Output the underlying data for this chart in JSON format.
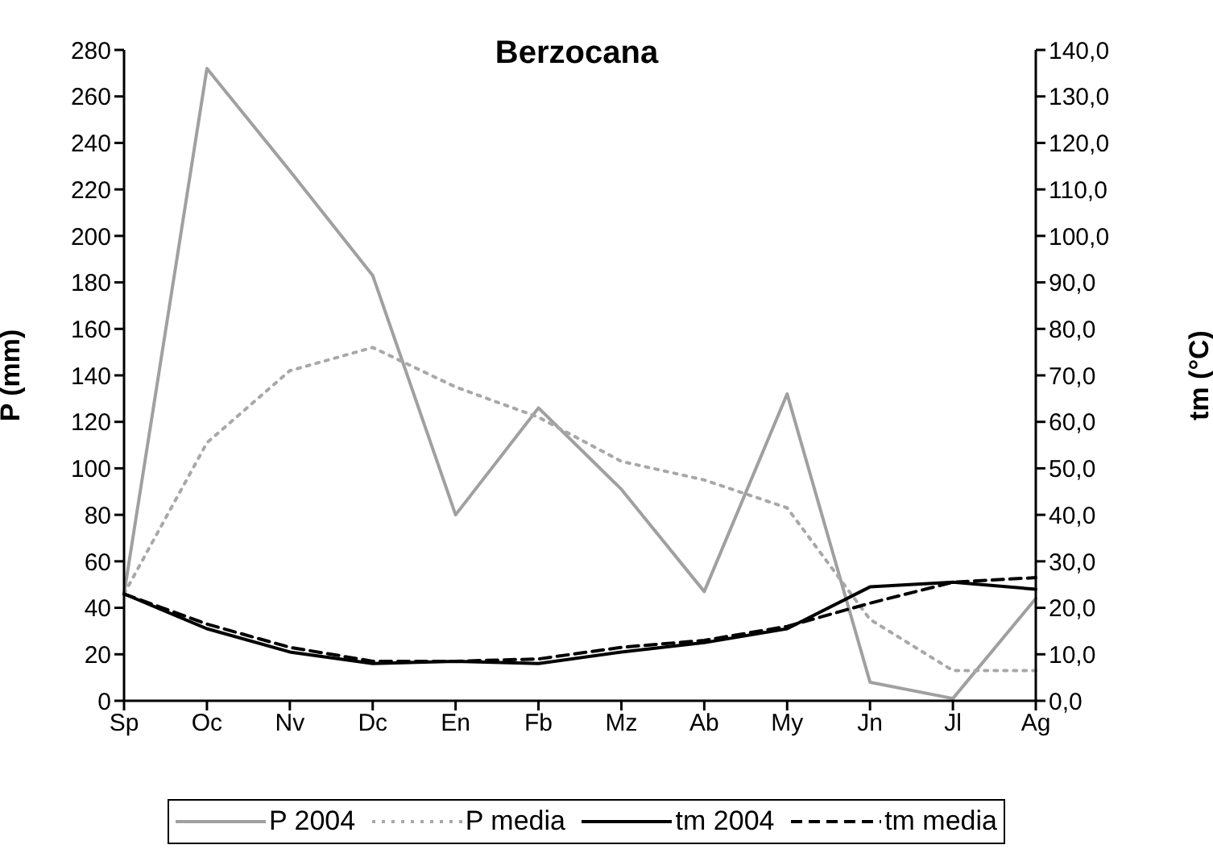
{
  "chart_data": {
    "type": "line",
    "title": "Berzocana",
    "ylabel": "P (mm)",
    "y2label": "tm (°C)",
    "categories": [
      "Sp",
      "Oc",
      "Nv",
      "Dc",
      "En",
      "Fb",
      "Mz",
      "Ab",
      "My",
      "Jn",
      "Jl",
      "Ag"
    ],
    "series": [
      {
        "name": "P 2004",
        "color": "#a0a0a0",
        "line_style": "solid",
        "values": [
          46,
          272,
          228,
          183,
          80,
          126,
          91,
          47,
          132,
          8,
          1,
          44
        ]
      },
      {
        "name": "P media",
        "color": "#a8a8a8",
        "line_style": "dotted",
        "values": [
          46,
          111,
          142,
          152,
          135,
          122,
          103,
          95,
          83,
          35,
          13,
          13
        ]
      },
      {
        "name": "tm 2004",
        "color": "#000000",
        "line_style": "solid",
        "axis": "y2",
        "values": [
          23,
          15.5,
          10.5,
          8,
          8.5,
          8,
          10.5,
          12.5,
          15.5,
          24.5,
          25.5,
          24
        ]
      },
      {
        "name": "tm media",
        "color": "#000000",
        "line_style": "dashed",
        "axis": "y2",
        "values": [
          23,
          16.5,
          11.5,
          8.5,
          8.5,
          9,
          11.5,
          13,
          16,
          21,
          25.5,
          26.5
        ]
      }
    ],
    "ylim": [
      0,
      280
    ],
    "yticks": [
      0,
      20,
      40,
      60,
      80,
      100,
      120,
      140,
      160,
      180,
      200,
      220,
      240,
      260,
      280
    ],
    "y2lim": [
      0,
      140
    ],
    "y2ticks": [
      {
        "value": 0,
        "label": "0,0"
      },
      {
        "value": 10,
        "label": "10,0"
      },
      {
        "value": 20,
        "label": "20,0"
      },
      {
        "value": 30,
        "label": "30,0"
      },
      {
        "value": 40,
        "label": "40,0"
      },
      {
        "value": 50,
        "label": "50,0"
      },
      {
        "value": 60,
        "label": "60,0"
      },
      {
        "value": 70,
        "label": "70,0"
      },
      {
        "value": 80,
        "label": "80,0"
      },
      {
        "value": 90,
        "label": "90,0"
      },
      {
        "value": 100,
        "label": "100,0"
      },
      {
        "value": 110,
        "label": "110,0"
      },
      {
        "value": 120,
        "label": "120,0"
      },
      {
        "value": 130,
        "label": "130,0"
      },
      {
        "value": 140,
        "label": "140,0"
      }
    ],
    "grid": false,
    "legend": "bottom",
    "marker": "none"
  }
}
